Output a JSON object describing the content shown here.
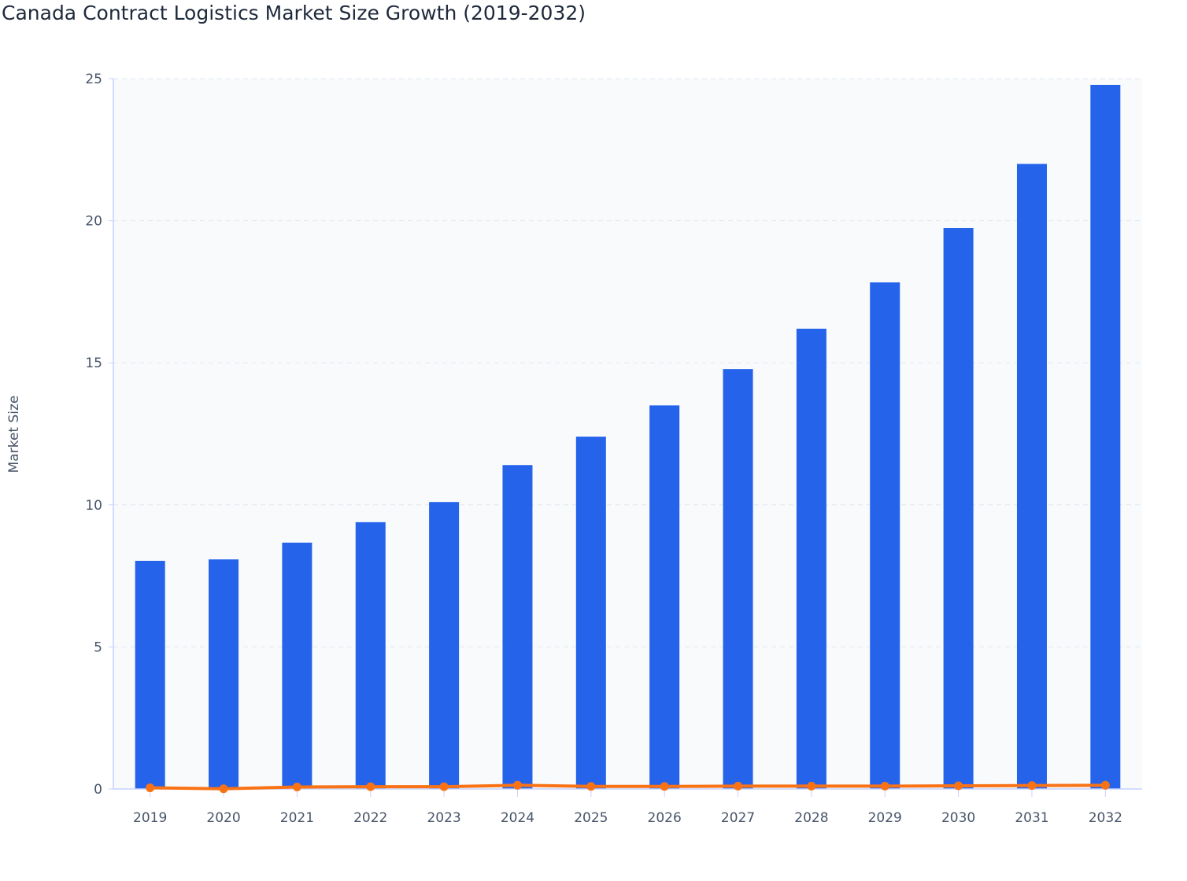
{
  "chart_data": {
    "type": "bar",
    "title": "Canada Contract Logistics Market Size Growth (2019-2032)",
    "xlabel": "",
    "ylabel": "Market Size",
    "ylim": [
      0,
      25
    ],
    "yticks": [
      0,
      5,
      10,
      15,
      20,
      25
    ],
    "grid": true,
    "legend": "none",
    "categories": [
      "2019",
      "2020",
      "2021",
      "2022",
      "2023",
      "2024",
      "2025",
      "2026",
      "2027",
      "2028",
      "2029",
      "2030",
      "2031",
      "2032"
    ],
    "series": [
      {
        "type": "bar",
        "color": "#2563eb",
        "values": [
          8.03,
          8.08,
          8.67,
          9.39,
          10.1,
          11.4,
          12.4,
          13.5,
          14.78,
          16.2,
          17.83,
          19.74,
          22.0,
          24.78
        ]
      },
      {
        "type": "line",
        "color": "#f97316",
        "values": [
          0.04,
          0.006,
          0.07,
          0.08,
          0.08,
          0.13,
          0.09,
          0.09,
          0.1,
          0.1,
          0.1,
          0.11,
          0.12,
          0.13
        ]
      }
    ]
  }
}
